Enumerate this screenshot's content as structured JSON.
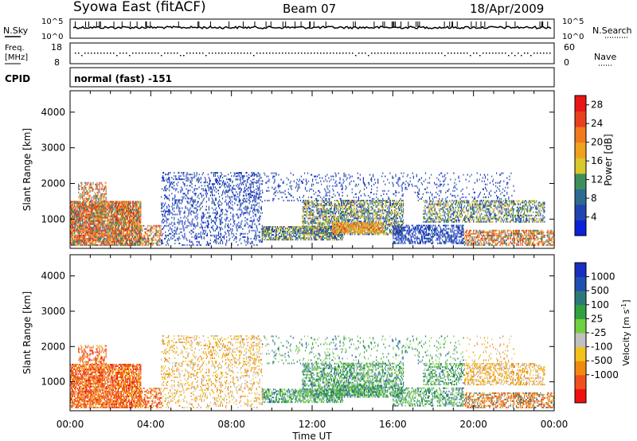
{
  "header": {
    "station": "Syowa East (fitACF)",
    "beam": "Beam 07",
    "date": "18/Apr/2009"
  },
  "status": {
    "nsky_label": "N.Sky",
    "nsky_top": "10^5",
    "nsky_bottom": "10^0",
    "nsearch_label": "N.Search",
    "nsearch_top": "10^5",
    "nsearch_bottom": "10^0",
    "freq_label_1": "Freq.",
    "freq_label_2": "[MHz]",
    "freq_top": "18",
    "freq_bottom": "8",
    "nave_label": "Nave",
    "nave_top": "60",
    "nave_bottom": "0",
    "cpid_label": "CPID",
    "cpid_text": "normal (fast) -151"
  },
  "colors": {
    "power": [
      "#0b22d9",
      "#2244b0",
      "#2f6a90",
      "#3f8f5c",
      "#d8c82a",
      "#f0a21c",
      "#f07a1e",
      "#e8401f",
      "#e81616"
    ],
    "velocity": [
      "#f01010",
      "#f05020",
      "#f08a10",
      "#f2c21a",
      "#c0c0c0",
      "#70d040",
      "#30a040",
      "#2c7a78",
      "#2050b0",
      "#1830c0"
    ]
  },
  "chart_data": [
    {
      "type": "heatmap",
      "name": "power",
      "ylabel": "Slant Range [km]",
      "xlabel": "",
      "x_ticks": [
        "00:00",
        "04:00",
        "08:00",
        "12:00",
        "16:00",
        "20:00",
        "00:00"
      ],
      "y_ticks": [
        1000,
        2000,
        3000,
        4000
      ],
      "xlim": [
        0,
        24
      ],
      "ylim": [
        180,
        4600
      ],
      "colorbar_label": "Power [dB]",
      "colorbar_ticks": [
        4,
        8,
        12,
        16,
        20,
        24,
        28
      ],
      "colorbar_range": [
        0,
        30
      ]
    },
    {
      "type": "heatmap",
      "name": "velocity",
      "ylabel": "Slant Range [km]",
      "xlabel": "Time UT",
      "x_ticks": [
        "00:00",
        "04:00",
        "08:00",
        "12:00",
        "16:00",
        "20:00",
        "00:00"
      ],
      "y_ticks": [
        1000,
        2000,
        3000,
        4000
      ],
      "xlim": [
        0,
        24
      ],
      "ylim": [
        180,
        4600
      ],
      "colorbar_label": "Velocity [m s^-1]",
      "colorbar_ticks": [
        "1000",
        "500",
        "100",
        "25",
        "-25",
        "-100",
        "-500",
        "-1000"
      ]
    }
  ]
}
